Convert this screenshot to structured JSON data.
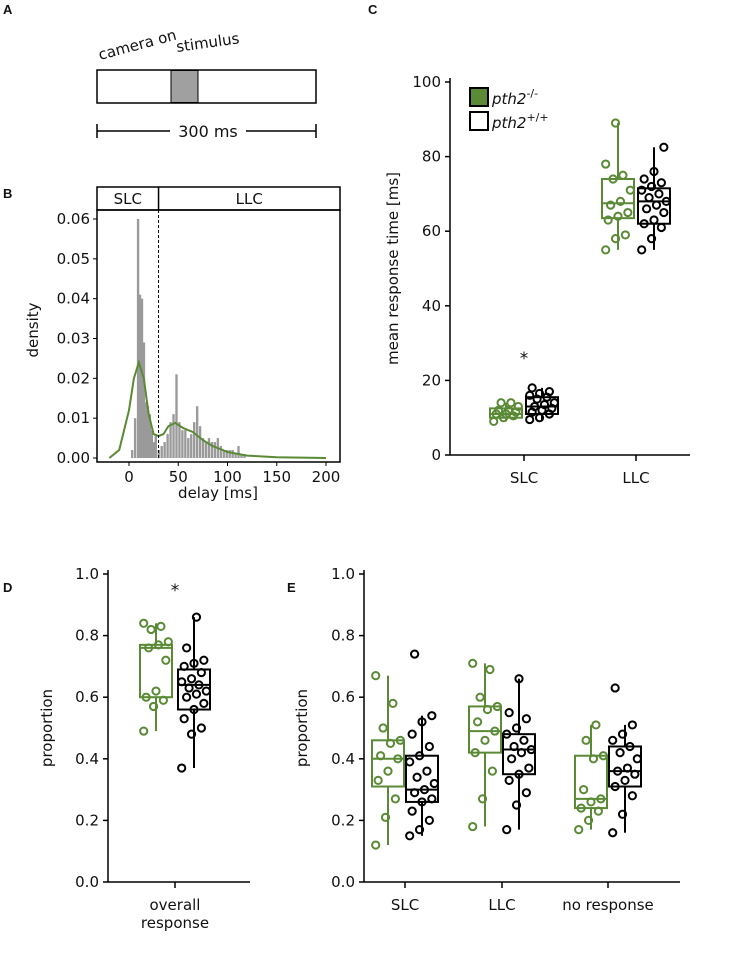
{
  "colors": {
    "mutant": "#5a8a35",
    "wildtype": "#000000",
    "hist": "#9a9a9a",
    "stimulus": "#a0a0a0"
  },
  "panel_labels": [
    "A",
    "B",
    "C",
    "D",
    "E"
  ],
  "panel_a": {
    "label_camera": "camera on",
    "label_stimulus": "stimulus",
    "scale_label": "300 ms"
  },
  "legend": {
    "mutant": {
      "base": "pth2",
      "sup": "-/-"
    },
    "wildtype": {
      "base": "pth2",
      "sup": "+/+"
    }
  },
  "chart_data": [
    {
      "panel": "B",
      "type": "bar",
      "xlabel": "delay [ms]",
      "ylabel": "density",
      "xlim": [
        -30,
        205
      ],
      "ylim": [
        0,
        0.063
      ],
      "xticks": [
        0,
        50,
        100,
        150,
        200
      ],
      "yticks": [
        "0.00",
        "0.01",
        "0.02",
        "0.03",
        "0.04",
        "0.05",
        "0.06"
      ],
      "regions": [
        "SLC",
        "LLC"
      ],
      "threshold": 30,
      "bin_width": 3,
      "bins": [
        [
          2,
          0.002
        ],
        [
          5,
          0.01
        ],
        [
          8,
          0.06
        ],
        [
          10,
          0.041
        ],
        [
          12,
          0.04
        ],
        [
          14,
          0.029
        ],
        [
          16,
          0.014
        ],
        [
          18,
          0.013
        ],
        [
          20,
          0.011
        ],
        [
          22,
          0.007
        ],
        [
          24,
          0.004
        ],
        [
          26,
          0.006
        ],
        [
          29,
          0.002
        ],
        [
          32,
          0.003
        ],
        [
          35,
          0.004
        ],
        [
          38,
          0.006
        ],
        [
          41,
          0.009
        ],
        [
          44,
          0.011
        ],
        [
          47,
          0.021
        ],
        [
          50,
          0.009
        ],
        [
          53,
          0.007
        ],
        [
          56,
          0.007
        ],
        [
          59,
          0.005
        ],
        [
          62,
          0.006
        ],
        [
          65,
          0.009
        ],
        [
          68,
          0.013
        ],
        [
          71,
          0.008
        ],
        [
          74,
          0.005
        ],
        [
          77,
          0.004
        ],
        [
          80,
          0.005
        ],
        [
          83,
          0.004
        ],
        [
          86,
          0.004
        ],
        [
          89,
          0.005
        ],
        [
          92,
          0.003
        ],
        [
          95,
          0.002
        ],
        [
          98,
          0.002
        ],
        [
          101,
          0.002
        ],
        [
          104,
          0.002
        ],
        [
          107,
          0.001
        ],
        [
          110,
          0.003
        ],
        [
          113,
          0.001
        ],
        [
          116,
          0.001
        ]
      ],
      "kde": [
        [
          -20,
          0
        ],
        [
          -10,
          0.002
        ],
        [
          0,
          0.012
        ],
        [
          5,
          0.02
        ],
        [
          10,
          0.024
        ],
        [
          15,
          0.02
        ],
        [
          20,
          0.011
        ],
        [
          25,
          0.006
        ],
        [
          30,
          0.0055
        ],
        [
          35,
          0.006
        ],
        [
          40,
          0.008
        ],
        [
          47,
          0.0088
        ],
        [
          55,
          0.0075
        ],
        [
          65,
          0.0065
        ],
        [
          75,
          0.0045
        ],
        [
          85,
          0.003
        ],
        [
          100,
          0.0015
        ],
        [
          120,
          0.0006
        ],
        [
          150,
          0.0002
        ],
        [
          200,
          0
        ]
      ]
    },
    {
      "panel": "C",
      "type": "box",
      "ylabel": "mean response time [ms]",
      "ylim": [
        0,
        100
      ],
      "yticks": [
        0,
        20,
        40,
        60,
        80,
        100
      ],
      "categories": [
        "SLC",
        "LLC"
      ],
      "annotations": [
        {
          "category": "SLC",
          "text": "*"
        }
      ],
      "series": [
        {
          "name": "pth2-/-",
          "boxes": [
            [
              9,
              10,
              11,
              12.5,
              14
            ],
            [
              55,
              63.5,
              67.5,
              74,
              89
            ]
          ],
          "points": [
            [
              9,
              10,
              10.5,
              11,
              11,
              11.5,
              12,
              12,
              13,
              14,
              14
            ],
            [
              55,
              58,
              59,
              63,
              64,
              65,
              67,
              68,
              71,
              74,
              75,
              78,
              89
            ]
          ]
        },
        {
          "name": "pth2+/+",
          "boxes": [
            [
              9.5,
              11,
              13,
              15.5,
              18
            ],
            [
              55,
              62,
              68,
              71.5,
              82.5
            ]
          ],
          "points": [
            [
              9.5,
              10,
              11,
              11.5,
              12,
              12.5,
              13,
              13.5,
              14,
              15,
              15.5,
              16,
              16.5,
              17,
              18
            ],
            [
              55,
              58,
              61,
              62,
              63,
              65,
              66,
              67,
              68,
              69,
              70,
              71,
              72,
              73,
              74,
              76,
              82.5
            ]
          ]
        }
      ]
    },
    {
      "panel": "D",
      "type": "box",
      "ylabel": "proportion",
      "ylim": [
        0,
        1
      ],
      "yticks": [
        "0.0",
        "0.2",
        "0.4",
        "0.6",
        "0.8",
        "1.0"
      ],
      "categories": [
        "overall response"
      ],
      "annotations": [
        {
          "category": "overall response",
          "text": "*"
        }
      ],
      "series": [
        {
          "name": "pth2-/-",
          "boxes": [
            [
              0.49,
              0.6,
              0.76,
              0.77,
              0.84
            ]
          ],
          "points": [
            [
              0.49,
              0.57,
              0.59,
              0.6,
              0.62,
              0.72,
              0.76,
              0.77,
              0.78,
              0.82,
              0.83,
              0.84
            ]
          ]
        },
        {
          "name": "pth2+/+",
          "boxes": [
            [
              0.37,
              0.56,
              0.64,
              0.69,
              0.86
            ]
          ],
          "points": [
            [
              0.37,
              0.48,
              0.5,
              0.53,
              0.56,
              0.58,
              0.6,
              0.61,
              0.62,
              0.63,
              0.64,
              0.65,
              0.66,
              0.68,
              0.7,
              0.71,
              0.72,
              0.76,
              0.86
            ]
          ]
        }
      ]
    },
    {
      "panel": "E",
      "type": "box",
      "ylabel": "proportion",
      "ylim": [
        0,
        1
      ],
      "yticks": [
        "0.0",
        "0.2",
        "0.4",
        "0.6",
        "0.8",
        "1.0"
      ],
      "categories": [
        "SLC",
        "LLC",
        "no response"
      ],
      "series": [
        {
          "name": "pth2-/-",
          "boxes": [
            [
              0.12,
              0.31,
              0.4,
              0.46,
              0.67
            ],
            [
              0.18,
              0.42,
              0.49,
              0.57,
              0.71
            ],
            [
              0.17,
              0.24,
              0.27,
              0.41,
              0.51
            ]
          ],
          "points": [
            [
              0.12,
              0.21,
              0.27,
              0.33,
              0.36,
              0.4,
              0.41,
              0.45,
              0.46,
              0.5,
              0.58,
              0.67
            ],
            [
              0.18,
              0.27,
              0.36,
              0.42,
              0.46,
              0.49,
              0.52,
              0.56,
              0.57,
              0.6,
              0.69,
              0.71
            ],
            [
              0.17,
              0.2,
              0.23,
              0.24,
              0.26,
              0.27,
              0.3,
              0.4,
              0.41,
              0.46,
              0.51
            ]
          ]
        },
        {
          "name": "pth2+/+",
          "boxes": [
            [
              0.15,
              0.26,
              0.3,
              0.41,
              0.54
            ],
            [
              0.17,
              0.35,
              0.43,
              0.48,
              0.66
            ],
            [
              0.16,
              0.31,
              0.36,
              0.44,
              0.51
            ]
          ],
          "points": [
            [
              0.15,
              0.17,
              0.2,
              0.23,
              0.26,
              0.27,
              0.29,
              0.3,
              0.32,
              0.34,
              0.36,
              0.39,
              0.41,
              0.44,
              0.48,
              0.52,
              0.54,
              0.74
            ],
            [
              0.17,
              0.25,
              0.29,
              0.33,
              0.35,
              0.37,
              0.4,
              0.42,
              0.43,
              0.44,
              0.46,
              0.48,
              0.5,
              0.53,
              0.55,
              0.66
            ],
            [
              0.16,
              0.22,
              0.28,
              0.31,
              0.33,
              0.35,
              0.36,
              0.37,
              0.4,
              0.42,
              0.44,
              0.46,
              0.48,
              0.51,
              0.63
            ]
          ]
        }
      ]
    }
  ]
}
